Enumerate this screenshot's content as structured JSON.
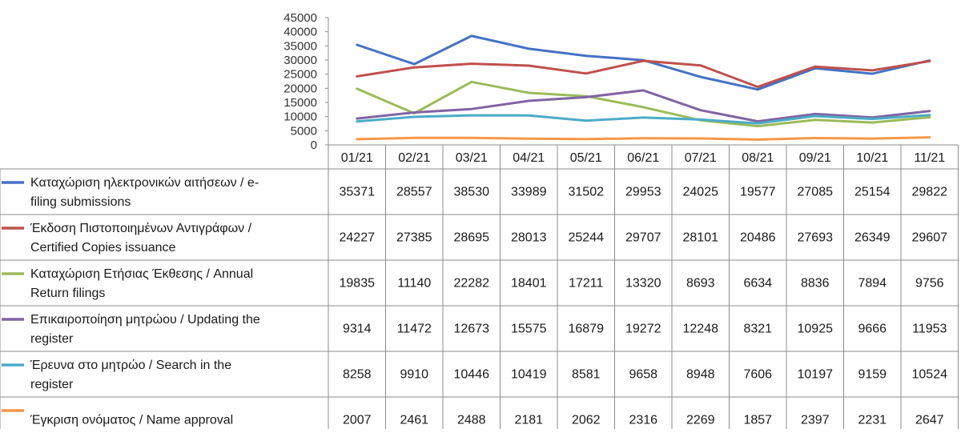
{
  "chart_data": {
    "type": "line",
    "categories": [
      "01/21",
      "02/21",
      "03/21",
      "04/21",
      "05/21",
      "06/21",
      "07/21",
      "08/21",
      "09/21",
      "10/21",
      "11/21"
    ],
    "ylim": [
      0,
      45000
    ],
    "yticks": [
      "0",
      "5000",
      "10000",
      "15000",
      "20000",
      "25000",
      "30000",
      "35000",
      "40000",
      "45000"
    ],
    "grid": false,
    "legend": "data-table",
    "series": [
      {
        "name_lines": [
          "Καταχώριση ηλεκτρονικών αιτήσεων / e-",
          "filing submissions"
        ],
        "color": "#4472C4",
        "values": [
          35371,
          28557,
          38530,
          33989,
          31502,
          29953,
          24025,
          19577,
          27085,
          25154,
          29822
        ]
      },
      {
        "name_lines": [
          "Έκδοση Πιστοποιημένων Αντιγράφων /",
          "Certified Copies issuance"
        ],
        "color": "#C0504D",
        "values": [
          24227,
          27385,
          28695,
          28013,
          25244,
          29707,
          28101,
          20486,
          27693,
          26349,
          29607
        ]
      },
      {
        "name_lines": [
          "Καταχώριση Ετήσιας Έκθεσης / Annual",
          "Return filings"
        ],
        "color": "#9BBB59",
        "values": [
          19835,
          11140,
          22282,
          18401,
          17211,
          13320,
          8693,
          6634,
          8836,
          7894,
          9756
        ]
      },
      {
        "name_lines": [
          "Επικαιροποίηση μητρώου / Updating the",
          "register"
        ],
        "color": "#8064A2",
        "values": [
          9314,
          11472,
          12673,
          15575,
          16879,
          19272,
          12248,
          8321,
          10925,
          9666,
          11953
        ]
      },
      {
        "name_lines": [
          "Έρευνα στο μητρώο / Search in the",
          "register"
        ],
        "color": "#4BACC6",
        "values": [
          8258,
          9910,
          10446,
          10419,
          8581,
          9658,
          8948,
          7606,
          10197,
          9159,
          10524
        ]
      },
      {
        "name_lines": [
          "Έγκριση ονόματος / Name approval"
        ],
        "color": "#F79646",
        "values": [
          2007,
          2461,
          2488,
          2181,
          2062,
          2316,
          2269,
          1857,
          2397,
          2231,
          2647
        ]
      }
    ]
  }
}
